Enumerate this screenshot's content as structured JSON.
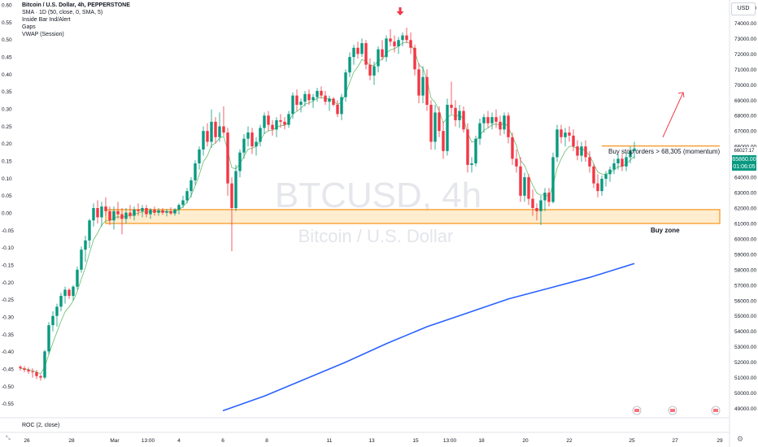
{
  "legend": {
    "title": "Bitcoin / U.S. Dollar, 4h, PEPPERSTONE",
    "line1": "SMA · 1D (50, close, 0, SMA, 5)",
    "line2": "Inside Bar Ind/Alert",
    "line3": "Gaps",
    "line4": "VWAP (Session)"
  },
  "watermark": {
    "symbol": "BTCUSD, 4h",
    "name": "Bitcoin / U.S. Dollar"
  },
  "currency_label": "USD",
  "roc_label": "ROC (2, close)",
  "annotation_text": "Buy stop orders > 68,305 (momentum)",
  "buy_zone_label": "Buy zone",
  "price_tag": {
    "price": "65860.00",
    "countdown": "01:06:05",
    "level": "66027.17"
  },
  "colors": {
    "up": "#089981",
    "down": "#f23645",
    "sma": "#2962ff",
    "zone_fill": "#fde3b3",
    "zone_border": "#f7931a",
    "vwap": "#4caf50",
    "annot_line": "#f7931a",
    "arrow": "#f23645"
  },
  "icons": {
    "marker": "red-down-arrow-icon",
    "settings": "gear-icon",
    "collapse": "collapse-icon"
  },
  "chart_data": {
    "type": "candlestick",
    "right_axis": {
      "label": "USD",
      "range": [
        48500,
        75500
      ],
      "ticks": [
        "75000.00",
        "74000.00",
        "73000.00",
        "72000.00",
        "71000.00",
        "70000.00",
        "69000.00",
        "68000.00",
        "67000.00",
        "66000.00",
        "65000.00",
        "64000.00",
        "63000.00",
        "62000.00",
        "61000.00",
        "60000.00",
        "59000.00",
        "58000.00",
        "57000.00",
        "56000.00",
        "55000.00",
        "54000.00",
        "53000.00",
        "52000.00",
        "51000.00",
        "50000.00",
        "49000.00"
      ]
    },
    "left_axis": {
      "range": [
        -0.586,
        0.614
      ],
      "ticks": [
        "0.60",
        "0.55",
        "0.50",
        "0.45",
        "0.40",
        "0.35",
        "0.30",
        "0.25",
        "0.20",
        "0.15",
        "0.10",
        "0.05",
        "0.00",
        "-0.05",
        "-0.10",
        "-0.15",
        "-0.20",
        "-0.25",
        "-0.30",
        "-0.35",
        "-0.40",
        "-0.45",
        "-0.50",
        "-0.55"
      ]
    },
    "x_axis": {
      "range": [
        0,
        860
      ],
      "ticks": [
        {
          "label": "26",
          "x": 8
        },
        {
          "label": "28",
          "x": 63
        },
        {
          "label": "Mar",
          "x": 116
        },
        {
          "label": "13:00",
          "x": 157
        },
        {
          "label": "4",
          "x": 195
        },
        {
          "label": "6",
          "x": 249
        },
        {
          "label": "8",
          "x": 303
        },
        {
          "label": "11",
          "x": 380
        },
        {
          "label": "13",
          "x": 432
        },
        {
          "label": "15",
          "x": 486
        },
        {
          "label": "13:00",
          "x": 528
        },
        {
          "label": "18",
          "x": 567
        },
        {
          "label": "20",
          "x": 621
        },
        {
          "label": "22",
          "x": 675
        },
        {
          "label": "25",
          "x": 752
        },
        {
          "label": "27",
          "x": 805
        },
        {
          "label": "29",
          "x": 860
        }
      ]
    },
    "candles": [
      [
        0,
        51700,
        51800,
        51450,
        51600
      ],
      [
        5,
        51600,
        51750,
        51350,
        51500
      ],
      [
        10,
        51500,
        51650,
        51250,
        51400
      ],
      [
        15,
        51400,
        51600,
        51000,
        51350
      ],
      [
        20,
        51350,
        51500,
        50900,
        51100
      ],
      [
        25,
        51100,
        51200,
        50800,
        51000
      ],
      [
        30,
        51000,
        52800,
        50900,
        52700
      ],
      [
        35,
        52700,
        54600,
        52500,
        54400
      ],
      [
        40,
        54400,
        55300,
        54000,
        55000
      ],
      [
        45,
        55000,
        55800,
        54300,
        55600
      ],
      [
        50,
        55600,
        56500,
        55300,
        56300
      ],
      [
        55,
        56300,
        56900,
        55800,
        56700
      ],
      [
        60,
        56700,
        56800,
        56100,
        56300
      ],
      [
        65,
        56300,
        57000,
        56000,
        56900
      ],
      [
        70,
        56900,
        58200,
        56700,
        58000
      ],
      [
        75,
        58000,
        59500,
        57800,
        59300
      ],
      [
        80,
        59300,
        60200,
        58500,
        59900
      ],
      [
        85,
        59900,
        61300,
        59400,
        61200
      ],
      [
        90,
        61200,
        62300,
        60800,
        62000
      ],
      [
        95,
        62000,
        62500,
        61000,
        61400
      ],
      [
        100,
        61400,
        62400,
        60800,
        62100
      ],
      [
        105,
        62100,
        62700,
        61500,
        61800
      ],
      [
        110,
        61800,
        62100,
        60900,
        61200
      ],
      [
        115,
        61200,
        62100,
        60600,
        61800
      ],
      [
        120,
        61800,
        62400,
        61300,
        61600
      ],
      [
        125,
        61600,
        62000,
        60300,
        61300
      ],
      [
        130,
        61300,
        62000,
        61000,
        61700
      ],
      [
        135,
        61700,
        62200,
        61300,
        61500
      ],
      [
        140,
        61500,
        62100,
        61200,
        61900
      ],
      [
        145,
        61900,
        62300,
        61500,
        61800
      ],
      [
        150,
        61800,
        62200,
        61400,
        62000
      ],
      [
        155,
        62000,
        62200,
        61400,
        61600
      ],
      [
        160,
        61600,
        62000,
        61300,
        61900
      ],
      [
        165,
        61900,
        62100,
        61500,
        61700
      ],
      [
        170,
        61700,
        62000,
        61500,
        61850
      ],
      [
        175,
        61850,
        62000,
        61550,
        61700
      ],
      [
        180,
        61700,
        61950,
        61450,
        61800
      ],
      [
        185,
        61800,
        62050,
        61550,
        61650
      ],
      [
        190,
        61650,
        62000,
        61500,
        61900
      ],
      [
        195,
        61900,
        62300,
        61600,
        62200
      ],
      [
        200,
        62200,
        62800,
        62000,
        62500
      ],
      [
        205,
        62500,
        63300,
        62300,
        63100
      ],
      [
        210,
        63100,
        64000,
        62700,
        63800
      ],
      [
        215,
        63800,
        65100,
        63500,
        64900
      ],
      [
        220,
        64900,
        66000,
        64500,
        65800
      ],
      [
        225,
        65800,
        67300,
        65400,
        67000
      ],
      [
        230,
        67000,
        67500,
        66000,
        66300
      ],
      [
        235,
        66300,
        68400,
        65900,
        67600
      ],
      [
        240,
        67600,
        67900,
        66200,
        66600
      ],
      [
        245,
        66600,
        68200,
        66300,
        67300
      ],
      [
        250,
        67300,
        68600,
        66700,
        66900
      ],
      [
        255,
        66900,
        67200,
        62800,
        63600
      ],
      [
        260,
        63600,
        64000,
        59200,
        62000
      ],
      [
        265,
        62000,
        64800,
        61800,
        64400
      ],
      [
        270,
        64400,
        65800,
        64000,
        65600
      ],
      [
        275,
        65600,
        66800,
        65200,
        66500
      ],
      [
        280,
        66500,
        67300,
        66000,
        66900
      ],
      [
        285,
        66900,
        67200,
        65500,
        66000
      ],
      [
        290,
        66000,
        66600,
        65400,
        66300
      ],
      [
        295,
        66300,
        67400,
        66000,
        67200
      ],
      [
        300,
        67200,
        68200,
        66800,
        68000
      ],
      [
        305,
        68000,
        68300,
        67000,
        67400
      ],
      [
        310,
        67400,
        67700,
        66700,
        67100
      ],
      [
        315,
        67100,
        67900,
        66600,
        67700
      ],
      [
        320,
        67700,
        68100,
        67200,
        67600
      ],
      [
        325,
        67600,
        67900,
        67100,
        67400
      ],
      [
        330,
        67400,
        68300,
        67200,
        68100
      ],
      [
        335,
        68100,
        69500,
        67800,
        69300
      ],
      [
        340,
        69300,
        69700,
        68300,
        68700
      ],
      [
        345,
        68700,
        69100,
        68200,
        68900
      ],
      [
        350,
        68900,
        69600,
        68600,
        69400
      ],
      [
        355,
        69400,
        69700,
        68700,
        69000
      ],
      [
        360,
        69000,
        69400,
        68500,
        69200
      ],
      [
        365,
        69200,
        69800,
        68900,
        69600
      ],
      [
        370,
        69600,
        69900,
        69100,
        69300
      ],
      [
        375,
        69300,
        69600,
        68700,
        68900
      ],
      [
        380,
        68900,
        69300,
        68300,
        69100
      ],
      [
        385,
        69100,
        69200,
        68600,
        68700
      ],
      [
        390,
        68700,
        69000,
        67900,
        68100
      ],
      [
        395,
        68100,
        69400,
        67700,
        69200
      ],
      [
        400,
        69200,
        71000,
        68900,
        70800
      ],
      [
        405,
        70800,
        72100,
        70500,
        71800
      ],
      [
        410,
        71800,
        72600,
        71300,
        72400
      ],
      [
        415,
        72400,
        72800,
        71700,
        72000
      ],
      [
        420,
        72000,
        73000,
        71800,
        72700
      ],
      [
        425,
        72700,
        72900,
        71000,
        71300
      ],
      [
        430,
        71300,
        71700,
        70300,
        70600
      ],
      [
        435,
        70600,
        71500,
        70000,
        71200
      ],
      [
        440,
        71200,
        72500,
        70800,
        72300
      ],
      [
        445,
        72300,
        72900,
        71600,
        71800
      ],
      [
        450,
        71800,
        73200,
        71500,
        73000
      ],
      [
        455,
        73000,
        73600,
        72500,
        72800
      ],
      [
        460,
        72800,
        73200,
        72100,
        72500
      ],
      [
        465,
        72500,
        73100,
        72000,
        72900
      ],
      [
        470,
        72900,
        73400,
        72500,
        73200
      ],
      [
        475,
        73200,
        73700,
        72700,
        72900
      ],
      [
        480,
        72900,
        73400,
        72000,
        72400
      ],
      [
        485,
        72400,
        72600,
        70600,
        71000
      ],
      [
        490,
        71000,
        71400,
        68800,
        69300
      ],
      [
        495,
        69300,
        71200,
        68800,
        70500
      ],
      [
        500,
        70500,
        71000,
        68300,
        68700
      ],
      [
        505,
        68700,
        69000,
        65800,
        66300
      ],
      [
        510,
        66300,
        68700,
        65800,
        68200
      ],
      [
        515,
        68200,
        68600,
        66600,
        67000
      ],
      [
        520,
        67000,
        67600,
        65200,
        65700
      ],
      [
        525,
        65700,
        69100,
        65400,
        68700
      ],
      [
        530,
        68700,
        70200,
        68100,
        68500
      ],
      [
        535,
        68500,
        69000,
        67300,
        67700
      ],
      [
        540,
        67700,
        68700,
        67200,
        68300
      ],
      [
        545,
        68300,
        68600,
        66900,
        67100
      ],
      [
        550,
        67100,
        67500,
        64300,
        64800
      ],
      [
        555,
        64800,
        65300,
        64300,
        64900
      ],
      [
        560,
        64900,
        66700,
        64700,
        66500
      ],
      [
        565,
        66500,
        67800,
        66100,
        67500
      ],
      [
        570,
        67500,
        68100,
        66900,
        67900
      ],
      [
        575,
        67900,
        68300,
        67200,
        67500
      ],
      [
        580,
        67500,
        68200,
        67100,
        67900
      ],
      [
        585,
        67900,
        68400,
        67200,
        67600
      ],
      [
        590,
        67600,
        68000,
        66700,
        67100
      ],
      [
        595,
        67100,
        68200,
        66800,
        68000
      ],
      [
        600,
        68000,
        68200,
        66200,
        66600
      ],
      [
        605,
        66600,
        66900,
        64800,
        65200
      ],
      [
        610,
        65200,
        65800,
        64300,
        64700
      ],
      [
        615,
        64700,
        65300,
        62400,
        62800
      ],
      [
        620,
        62800,
        64300,
        62400,
        64000
      ],
      [
        625,
        64000,
        64200,
        62200,
        62600
      ],
      [
        630,
        62600,
        63200,
        61500,
        62000
      ],
      [
        635,
        62000,
        62300,
        61200,
        61800
      ],
      [
        640,
        61800,
        62800,
        60900,
        62500
      ],
      [
        645,
        62500,
        63300,
        61800,
        63000
      ],
      [
        650,
        63000,
        63300,
        62100,
        62400
      ],
      [
        655,
        62400,
        65600,
        62300,
        65300
      ],
      [
        660,
        65300,
        67400,
        65000,
        67100
      ],
      [
        665,
        67100,
        67400,
        66200,
        66600
      ],
      [
        670,
        66600,
        67200,
        66000,
        66900
      ],
      [
        675,
        66900,
        67300,
        66300,
        66700
      ],
      [
        680,
        66700,
        67100,
        65700,
        66000
      ],
      [
        685,
        66000,
        66400,
        65100,
        65400
      ],
      [
        690,
        65400,
        66300,
        65000,
        66000
      ],
      [
        695,
        66000,
        66400,
        65000,
        65300
      ],
      [
        700,
        65300,
        65700,
        64300,
        64700
      ],
      [
        705,
        64700,
        64900,
        63300,
        63600
      ],
      [
        710,
        63600,
        64200,
        62700,
        63100
      ],
      [
        715,
        63100,
        64100,
        62800,
        63900
      ],
      [
        720,
        63900,
        64400,
        63400,
        64200
      ],
      [
        725,
        64200,
        64700,
        63700,
        64500
      ],
      [
        730,
        64500,
        65200,
        64200,
        64900
      ],
      [
        735,
        64900,
        65500,
        64500,
        65200
      ],
      [
        740,
        65200,
        65500,
        64400,
        64700
      ],
      [
        745,
        64700,
        65600,
        64400,
        65300
      ],
      [
        750,
        65300,
        66000,
        64900,
        65700
      ],
      [
        755,
        65700,
        66300,
        65200,
        65860
      ]
    ],
    "sma": [
      [
        249,
        48850
      ],
      [
        300,
        49800
      ],
      [
        350,
        50900
      ],
      [
        400,
        52000
      ],
      [
        450,
        53200
      ],
      [
        500,
        54300
      ],
      [
        550,
        55200
      ],
      [
        600,
        56100
      ],
      [
        650,
        56800
      ],
      [
        700,
        57500
      ],
      [
        755,
        58400
      ]
    ],
    "buy_zone": {
      "x_start": 105,
      "x_end": 860,
      "top": 61900,
      "bottom": 61000
    },
    "annotation_level": {
      "x_start": 715,
      "x_end": 860,
      "price": 66027
    },
    "arrow_up": {
      "from": [
        790,
        66600
      ],
      "to": [
        815,
        69500
      ]
    },
    "marker": {
      "x": 467,
      "price": 74500
    }
  }
}
